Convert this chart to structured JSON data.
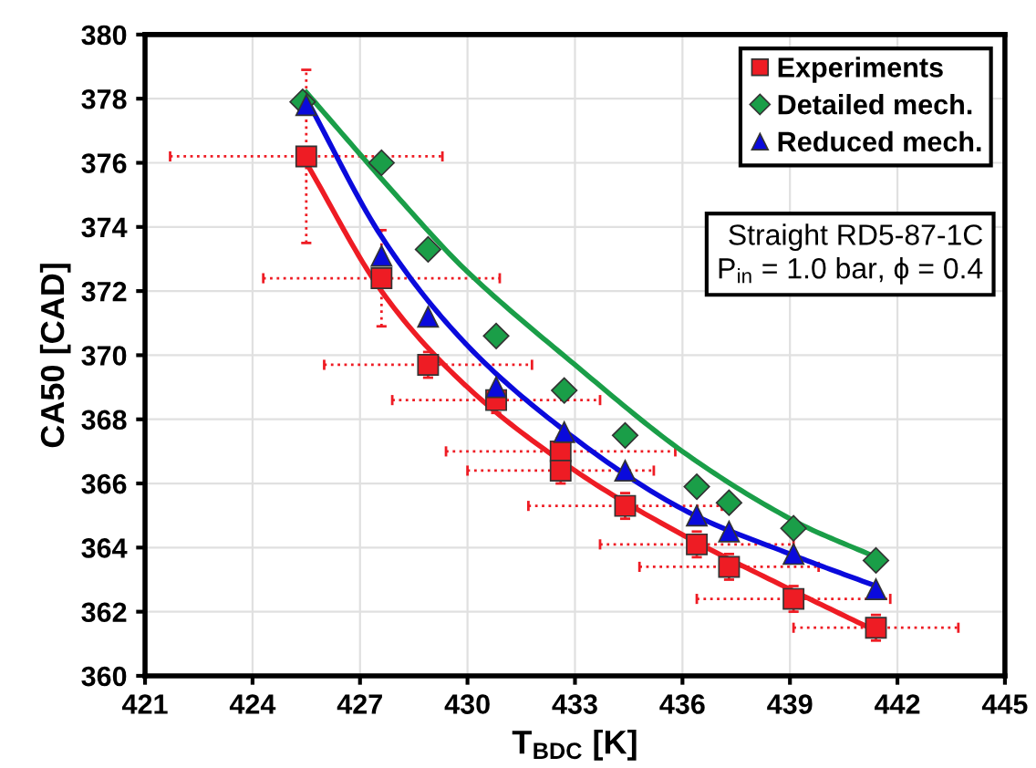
{
  "chart_data": {
    "type": "scatter",
    "xlabel": "T$_{BDC}$ [K]",
    "ylabel": "CA50 [CAD]",
    "xlim": [
      421,
      445
    ],
    "xticks": [
      421,
      424,
      427,
      430,
      433,
      436,
      439,
      442,
      445
    ],
    "ylim": [
      360,
      380
    ],
    "yticks": [
      360,
      362,
      364,
      366,
      368,
      370,
      372,
      374,
      376,
      378,
      380
    ],
    "grid": true,
    "legend": "top right",
    "annotations": [
      "Straight RD5-87-1C\nP$_{in}$ = 1.0 bar, ϕ = 0.4"
    ],
    "series": [
      {
        "name": "Experiments",
        "marker": "square",
        "color": "#ee1c24",
        "x": [
          425.5,
          427.6,
          428.9,
          430.8,
          432.6,
          432.6,
          434.4,
          436.4,
          437.3,
          439.1,
          441.4
        ],
        "values": [
          376.2,
          372.4,
          369.7,
          368.6,
          367.0,
          366.4,
          365.3,
          364.1,
          363.4,
          362.4,
          361.5
        ],
        "xerrors": [
          3.8,
          3.3,
          2.9,
          2.9,
          3.2,
          2.6,
          2.7,
          2.7,
          2.5,
          2.7,
          2.3
        ],
        "errors": [
          2.7,
          1.5,
          0.4,
          0.4,
          0.4,
          0.4,
          0.4,
          0.4,
          0.4,
          0.4,
          0.4
        ]
      },
      {
        "name": "Detailed mech.",
        "marker": "diamond",
        "color": "#1a9e48",
        "x": [
          425.4,
          427.6,
          428.9,
          430.8,
          432.7,
          434.4,
          436.4,
          437.3,
          439.1,
          441.4
        ],
        "values": [
          377.9,
          376.0,
          373.3,
          370.6,
          368.9,
          367.5,
          365.9,
          365.4,
          364.6,
          363.6
        ]
      },
      {
        "name": "Reduced mech.",
        "marker": "triangle",
        "color": "#0a0adc",
        "x": [
          425.5,
          427.6,
          428.9,
          430.8,
          432.7,
          434.4,
          436.4,
          437.3,
          439.1,
          441.4
        ],
        "values": [
          377.8,
          373.1,
          371.2,
          369.0,
          367.6,
          366.4,
          365.0,
          364.5,
          363.8,
          362.7
        ]
      },
      {
        "type": "line",
        "color": "#ee1c24",
        "x": [
          425.5,
          427.6,
          430,
          433,
          436,
          439,
          441.4
        ],
        "values": [
          376.0,
          372.0,
          369.0,
          366.4,
          364.4,
          362.7,
          361.4
        ]
      },
      {
        "type": "line",
        "color": "#1a9e48",
        "x": [
          425.5,
          428,
          430,
          433,
          436,
          439,
          441.4
        ],
        "values": [
          378.2,
          375.0,
          372.6,
          369.7,
          367.0,
          364.9,
          363.7
        ]
      },
      {
        "type": "line",
        "color": "#0a0adc",
        "x": [
          425.5,
          427.6,
          430,
          433,
          436,
          439,
          441.4
        ],
        "values": [
          378.0,
          373.7,
          370.3,
          367.4,
          365.2,
          363.8,
          362.8
        ]
      }
    ]
  }
}
